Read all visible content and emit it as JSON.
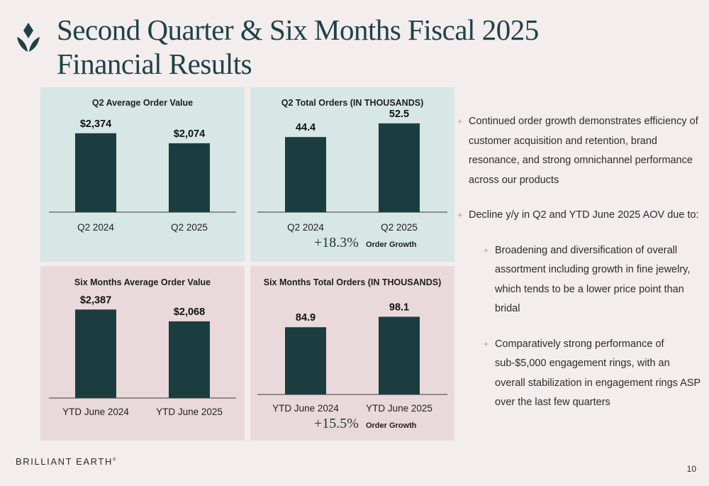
{
  "colors": {
    "bar": "#1b3d40",
    "teal_panel": "#d6e7e5",
    "rose_panel": "#ead9da",
    "accent": "#cc8c95",
    "title": "#1f4246"
  },
  "header": {
    "title_line1": "Second Quarter & Six Months Fiscal 2025",
    "title_line2": "Financial Results",
    "logo_icon": "diamond-leaf-icon"
  },
  "chart_data": [
    {
      "type": "bar",
      "title": "Q2 Average Order Value",
      "categories": [
        "Q2 2024",
        "Q2 2025"
      ],
      "values": [
        2374,
        2074
      ],
      "data_labels": [
        "$2,374",
        "$2,074"
      ],
      "ylim": [
        0,
        2600
      ]
    },
    {
      "type": "bar",
      "title": "Q2 Total Orders (IN THOUSANDS)",
      "categories": [
        "Q2 2024",
        "Q2 2025"
      ],
      "values": [
        44.4,
        52.5
      ],
      "data_labels": [
        "44.4",
        "52.5"
      ],
      "ylim": [
        0,
        57
      ],
      "annotation": {
        "value": "+18.3%",
        "label": "Order Growth"
      }
    },
    {
      "type": "bar",
      "title": "Six Months Average Order Value",
      "categories": [
        "YTD June 2024",
        "YTD June 2025"
      ],
      "values": [
        2387,
        2068
      ],
      "data_labels": [
        "$2,387",
        "$2,068"
      ],
      "ylim": [
        0,
        2600
      ]
    },
    {
      "type": "bar",
      "title": "Six Months Total Orders (IN THOUSANDS)",
      "categories": [
        "YTD June 2024",
        "YTD June 2025"
      ],
      "values": [
        84.9,
        98.1
      ],
      "data_labels": [
        "84.9",
        "98.1"
      ],
      "ylim": [
        0,
        110
      ],
      "annotation": {
        "value": "+15.5%",
        "label": "Order Growth"
      }
    }
  ],
  "bullets": [
    {
      "level": 1,
      "text": "Continued order growth demonstrates efficiency of customer acquisition and retention, brand resonance, and strong omnichannel performance across our products"
    },
    {
      "level": 1,
      "text": "Decline y/y in Q2 and YTD June 2025 AOV due to:"
    },
    {
      "level": 2,
      "text": "Broadening and diversification of overall assortment including growth in fine jewelry, which tends to be a lower price point than bridal"
    },
    {
      "level": 2,
      "text": "Comparatively strong performance of sub-$5,000 engagement rings, with an overall stabilization in engagement rings ASP over the last few quarters"
    }
  ],
  "bullet_marker": "+",
  "footer": {
    "brand": "BRILLIANT EARTH",
    "brand_mark": "®",
    "page": "10"
  }
}
